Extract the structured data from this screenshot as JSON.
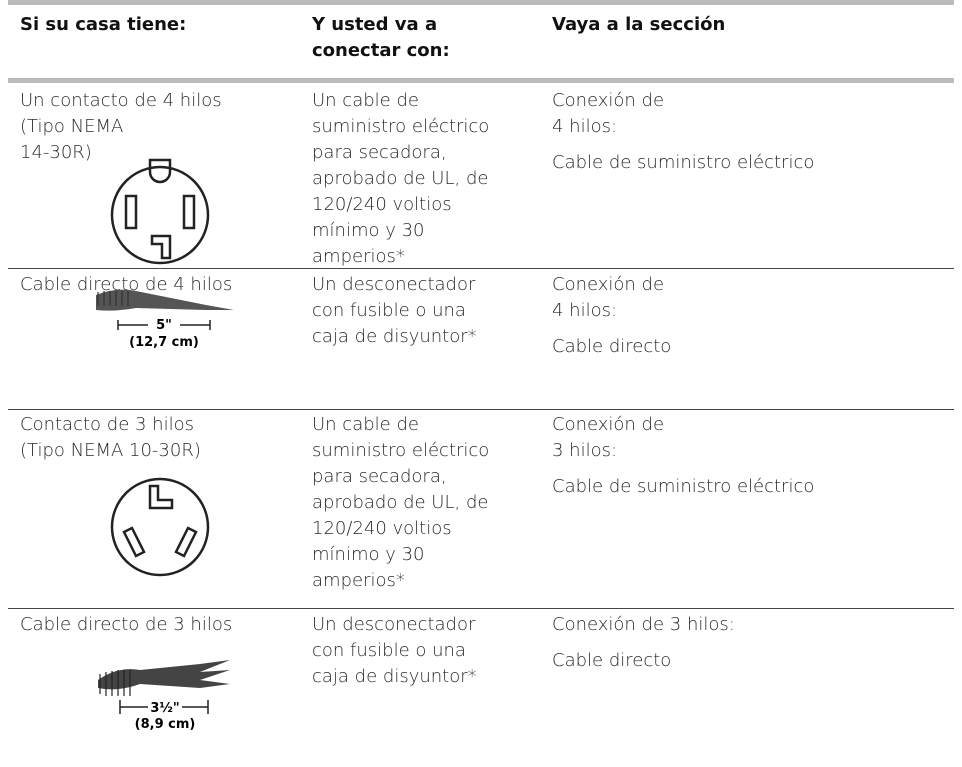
{
  "table": {
    "header": [
      [
        "Si su casa tiene:"
      ],
      [
        "Y usted va a",
        "conectar con:"
      ],
      [
        "Vaya a la sección"
      ]
    ],
    "rows": [
      {
        "house": [
          "Un contacto de 4 hilos",
          "(Tipo NEMA",
          "14-30R)"
        ],
        "connect": [
          "Un cable de",
          "suministro eléctrico",
          "para secadora,",
          "aprobado de UL, de",
          "120/240 voltios",
          "mínimo y 30",
          "amperios*"
        ],
        "section": [
          [
            "Conexión de",
            "4 hilos:"
          ],
          [
            "Cable de suministro eléctrico"
          ]
        ]
      },
      {
        "house": [
          "Cable directo de 4 hilos"
        ],
        "figure": {
          "length": "5\"",
          "metric": "(12,7 cm)"
        },
        "connect": [
          "Un desconectador",
          "con fusible o una",
          "caja de disyuntor*"
        ],
        "section": [
          [
            "Conexión de",
            "4 hilos:"
          ],
          [
            "Cable directo"
          ]
        ]
      },
      {
        "house": [
          "Contacto de 3 hilos",
          "(Tipo NEMA 10-30R)"
        ],
        "connect": [
          "Un cable de",
          "suministro eléctrico",
          "para secadora,",
          "aprobado de UL, de",
          "120/240 voltios",
          "mínimo y 30",
          "amperios*"
        ],
        "section": [
          [
            "Conexión de",
            "3 hilos:"
          ],
          [
            "Cable de suministro eléctrico"
          ]
        ]
      },
      {
        "house": [
          "Cable directo de 3 hilos"
        ],
        "figure": {
          "length": "3½\"",
          "metric": "(8,9 cm)"
        },
        "connect": [
          "Un desconectador",
          "con fusible o una",
          "caja de disyuntor*"
        ],
        "section": [
          [
            "Conexión de 3 hilos:"
          ],
          [
            "Cable directo"
          ]
        ]
      }
    ]
  }
}
